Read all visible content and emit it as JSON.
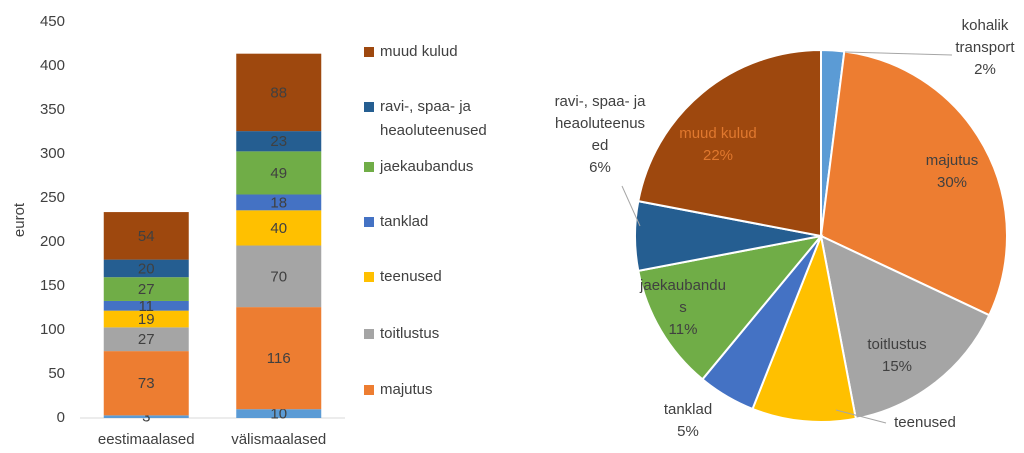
{
  "chart_data": [
    {
      "type": "bar",
      "ylabel": "eurot",
      "categories": [
        "eestimaalased",
        "välismaalased"
      ],
      "series": [
        {
          "color": "#5b9bd5",
          "values": [
            3,
            10
          ]
        },
        {
          "name": "majutus",
          "color": "#ed7d31",
          "values": [
            73,
            116
          ]
        },
        {
          "name": "toitlustus",
          "color": "#a5a5a5",
          "values": [
            27,
            70
          ]
        },
        {
          "name": "teenused",
          "color": "#ffc000",
          "values": [
            19,
            40
          ]
        },
        {
          "name": "tanklad",
          "color": "#4472c4",
          "values": [
            11,
            18
          ]
        },
        {
          "name": "jaekaubandus",
          "color": "#70ad47",
          "values": [
            27,
            49
          ]
        },
        {
          "name": "ravi-, spaa- ja heaoluteenused",
          "color": "#255e91",
          "values": [
            20,
            23
          ]
        },
        {
          "name": "muud kulud",
          "color": "#9e480e",
          "values": [
            54,
            88
          ]
        }
      ],
      "ylim": [
        0,
        450
      ],
      "yticks": [
        0,
        50,
        100,
        150,
        200,
        250,
        300,
        350,
        400,
        450
      ],
      "legend": "right"
    },
    {
      "type": "pie",
      "categories": [
        "kohalik transport",
        "majutus",
        "toitlustus",
        "teenused",
        "tanklad",
        "jaekaubandus",
        "ravi-, spaa- ja heaoluteenused",
        "muud kulud"
      ],
      "values": [
        2,
        30,
        15,
        9,
        5,
        11,
        6,
        22
      ],
      "value_labels": [
        "2%",
        "30%",
        "15%",
        null,
        "5%",
        "11%",
        "6%",
        "22%"
      ],
      "colors": [
        "#5b9bd5",
        "#ed7d31",
        "#a5a5a5",
        "#ffc000",
        "#4472c4",
        "#70ad47",
        "#255e91",
        "#9e480e"
      ]
    }
  ]
}
